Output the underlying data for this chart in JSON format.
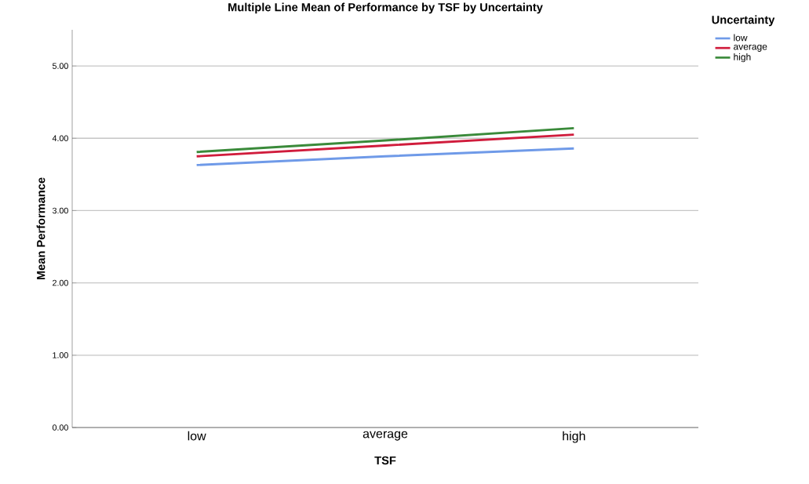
{
  "chart_data": {
    "type": "line",
    "title": "Multiple Line Mean of Performance by TSF by Uncertainty",
    "xlabel": "TSF",
    "ylabel": "Mean Performance",
    "legend_title": "Uncertainty",
    "categories": [
      "low",
      "average",
      "high"
    ],
    "series": [
      {
        "name": "low",
        "color": "#6f9ae8",
        "values": [
          3.63,
          3.75,
          3.86
        ]
      },
      {
        "name": "average",
        "color": "#d01c3c",
        "values": [
          3.75,
          3.9,
          4.05
        ]
      },
      {
        "name": "high",
        "color": "#3a8a3a",
        "values": [
          3.81,
          3.97,
          4.14
        ]
      }
    ],
    "ylim": [
      0,
      5.5
    ],
    "yticks": [
      {
        "value": 0,
        "label": "0.00"
      },
      {
        "value": 1,
        "label": "1.00"
      },
      {
        "value": 2,
        "label": "2.00"
      },
      {
        "value": 3,
        "label": "3.00"
      },
      {
        "value": 4,
        "label": "4.00"
      },
      {
        "value": 5,
        "label": "5.00"
      }
    ],
    "grid": "y",
    "legend": "top right",
    "marker": "none",
    "line_style": "solid"
  }
}
